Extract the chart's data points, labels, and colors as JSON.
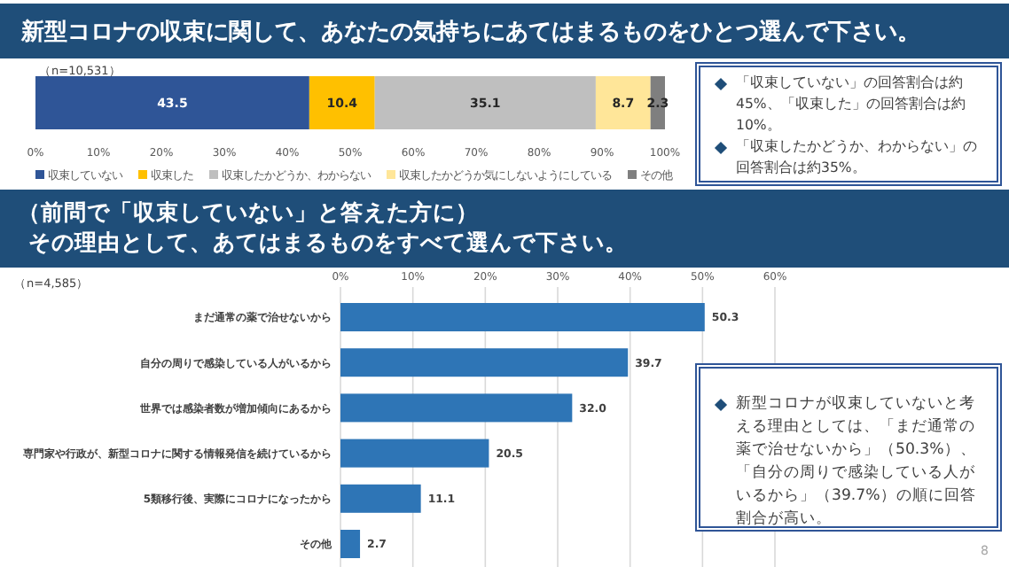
{
  "chart_data": [
    {
      "type": "bar",
      "orientation": "horizontal",
      "stacked": true,
      "title": "新型コロナの収束に関して、あなたの気持ちにあてはまるものをひとつ選んで下さい。",
      "categories": [
        null
      ],
      "series": [
        {
          "name": "収束していない",
          "color": "#2f5597",
          "values": [
            43.5
          ],
          "value_labels": [
            "43.5"
          ]
        },
        {
          "name": "収束した",
          "color": "#ffc000",
          "values": [
            10.4
          ],
          "value_labels": [
            "10.4"
          ]
        },
        {
          "name": "収束したかどうか、わからない",
          "color": "#bfbfbf",
          "values": [
            35.1
          ],
          "value_labels": [
            "35.1"
          ]
        },
        {
          "name": "収束したかどうか気にしないようにしている",
          "color": "#ffe699",
          "values": [
            8.7
          ],
          "value_labels": [
            "8.7"
          ]
        },
        {
          "name": "その他",
          "color": "#7f7f7f",
          "values": [
            2.3
          ],
          "value_labels": [
            "2.3"
          ]
        }
      ],
      "xlim": [
        0,
        100
      ],
      "xticks": [
        {
          "value": 0,
          "label": "0%"
        },
        {
          "value": 10,
          "label": "10%"
        },
        {
          "value": 20,
          "label": "20%"
        },
        {
          "value": 30,
          "label": "30%"
        },
        {
          "value": 40,
          "label": "40%"
        },
        {
          "value": 50,
          "label": "50%"
        },
        {
          "value": 60,
          "label": "60%"
        },
        {
          "value": 70,
          "label": "70%"
        },
        {
          "value": 80,
          "label": "80%"
        },
        {
          "value": 90,
          "label": "90%"
        },
        {
          "value": 100,
          "label": "100%"
        }
      ],
      "grid": false,
      "legend": "bottom",
      "annotations": [
        "（n=10,531）",
        "「収束していない」の回答割合は約45%、「収束した」の回答割合は約10%。",
        "「収束したかどうか、わからない」の回答割合は約35%。"
      ]
    },
    {
      "type": "bar",
      "orientation": "horizontal",
      "title": "（前問で「収束していない」と答えた方に）",
      "subtitle": "その理由として、あてはまるものをすべて選んで下さい。",
      "categories": [
        "まだ通常の薬で治せないから",
        "自分の周りで感染している人がいるから",
        "世界では感染者数が増加傾向にあるから",
        "専門家や行政が、新型コロナに関する情報発信を続けているから",
        "5類移行後、実際にコロナになったから",
        "その他"
      ],
      "values": [
        50.3,
        39.7,
        32.0,
        20.5,
        11.1,
        2.7
      ],
      "value_labels": [
        "50.3",
        "39.7",
        "32.0",
        "20.5",
        "11.1",
        "2.7"
      ],
      "color": "#2e75b6",
      "xlim": [
        0,
        60
      ],
      "xticks": [
        {
          "value": 0,
          "label": "0%"
        },
        {
          "value": 10,
          "label": "10%"
        },
        {
          "value": 20,
          "label": "20%"
        },
        {
          "value": 30,
          "label": "30%"
        },
        {
          "value": 40,
          "label": "40%"
        },
        {
          "value": 50,
          "label": "50%"
        },
        {
          "value": 60,
          "label": "60%"
        }
      ],
      "grid": "x",
      "annotations": [
        "（n=4,585）",
        "新型コロナが収束していないと考える理由としては、「まだ通常の薬で治せないから」（50.3%）、「自分の周りで感染している人がいるから」（39.7%）の順に回答割合が高い。",
        "8"
      ]
    }
  ]
}
